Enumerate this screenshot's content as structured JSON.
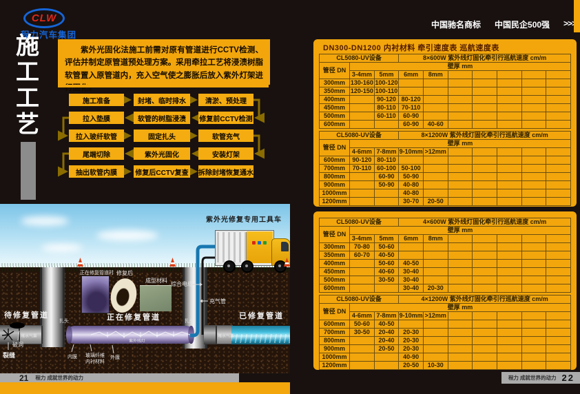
{
  "brand": {
    "logo": "CLW",
    "company": "程力汽车集团"
  },
  "top_right": {
    "badge1": "中国驰名商标",
    "badge2": "中国民企500强",
    "chevrons": ">>>"
  },
  "left_page": {
    "title_chars": [
      "施",
      "工",
      "工",
      "艺"
    ],
    "intro_text": "紫外光固化法施工前需对原有管道进行CCTV检测、评估并制定原管道预处理方案。采用牵拉工艺将浸渍树脂软管置入原管道内，充入空气使之膨胀后放入紫外灯架进行固化。",
    "flow": [
      {
        "dir": "right",
        "steps": [
          "施工准备",
          "封堵、临时排水",
          "清淤、预处理"
        ]
      },
      {
        "dir": "left",
        "steps": [
          "拉入垫膜",
          "软管的树脂浸渍",
          "修复前CCTV检测"
        ]
      },
      {
        "dir": "right",
        "steps": [
          "拉入玻纤软管",
          "固定扎头",
          "软管充气"
        ]
      },
      {
        "dir": "left",
        "steps": [
          "尾端切除",
          "紫外光固化",
          "安装灯架"
        ]
      },
      {
        "dir": "right",
        "steps": [
          "抽出软管内膜",
          "修复后CCTV复查",
          "拆除封堵恢复通水"
        ]
      }
    ],
    "footer": {
      "page_no": "21",
      "slogan": "程力 成就世界的动力"
    }
  },
  "illustration": {
    "truck_label": "紫外光修复专用工具车",
    "inset_photo_label": "正在修复管道时",
    "inset_ring_label": "修复后",
    "inset_material_label": "成型材料",
    "cable_label": "综合电缆",
    "air_pipe_label": "充气管",
    "pipe_waiting_label": "待修复管道",
    "pipe_repairing_label": "正在修复管道",
    "pipe_done_label": "已修复管道",
    "hole_label": "破洞",
    "crack_label": "裂缝",
    "plug_left_label": "堵水气囊",
    "plug_right_label": "堵水气囊",
    "clamp_left_label": "扎头",
    "clamp_right_label": "扎头",
    "inner_film_label": "内膜",
    "liner_label_line1": "玻璃纤维",
    "liner_label_line2": "内衬材料",
    "outer_film_label": "外膜",
    "uv_lamp_label": "紫外线灯"
  },
  "right_page": {
    "tables_title": "DN300-DN1200 内衬材料 牵引速度表 巡航速度表",
    "pipe_col_header": "管径 DN",
    "thickness_header": "壁厚 mm",
    "tables": [
      {
        "device": "CL5080-UV设备",
        "spec": "8×600W 紫外线灯固化牵引行巡航速度 cm/m",
        "thickness_cols": [
          "3-4mm",
          "5mm",
          "6mm",
          "8mm",
          "",
          "",
          "",
          "",
          ""
        ],
        "rows": [
          [
            "300mm",
            "130-160",
            "100-120",
            "",
            "",
            "",
            "",
            "",
            "",
            ""
          ],
          [
            "350mm",
            "120-150",
            "100-110",
            "",
            "",
            "",
            "",
            "",
            "",
            ""
          ],
          [
            "400mm",
            "",
            "90-120",
            "80-120",
            "",
            "",
            "",
            "",
            "",
            ""
          ],
          [
            "450mm",
            "",
            "80-110",
            "70-110",
            "",
            "",
            "",
            "",
            "",
            ""
          ],
          [
            "500mm",
            "",
            "60-110",
            "60-90",
            "",
            "",
            "",
            "",
            "",
            ""
          ],
          [
            "600mm",
            "",
            "",
            "60-90",
            "40-60",
            "",
            "",
            "",
            "",
            ""
          ]
        ]
      },
      {
        "device": "CL5080-UV设备",
        "spec": "8×1200W 紫外线灯固化牵引行巡航速度 cm/m",
        "thickness_cols": [
          "4-6mm",
          "7-8mm",
          "9-10mm",
          ">12mm",
          "",
          "",
          "",
          "",
          ""
        ],
        "rows": [
          [
            "600mm",
            "90-120",
            "80-110",
            "",
            "",
            "",
            "",
            "",
            "",
            ""
          ],
          [
            "700mm",
            "70-110",
            "60-100",
            "50-100",
            "",
            "",
            "",
            "",
            "",
            ""
          ],
          [
            "800mm",
            "",
            "60-90",
            "50-90",
            "",
            "",
            "",
            "",
            "",
            ""
          ],
          [
            "900mm",
            "",
            "50-90",
            "40-80",
            "",
            "",
            "",
            "",
            "",
            ""
          ],
          [
            "1000mm",
            "",
            "",
            "40-80",
            "",
            "",
            "",
            "",
            "",
            ""
          ],
          [
            "1200mm",
            "",
            "",
            "30-70",
            "20-50",
            "",
            "",
            "",
            "",
            ""
          ]
        ]
      },
      {
        "device": "CL5080-UV设备",
        "spec": "4×600W 紫外线灯固化牵引行巡航速度 cm/m",
        "thickness_cols": [
          "3-4mm",
          "5mm",
          "6mm",
          "8mm",
          "",
          "",
          "",
          "",
          ""
        ],
        "rows": [
          [
            "300mm",
            "70-80",
            "50-60",
            "",
            "",
            "",
            "",
            "",
            "",
            ""
          ],
          [
            "350mm",
            "60-70",
            "40-50",
            "",
            "",
            "",
            "",
            "",
            "",
            ""
          ],
          [
            "400mm",
            "",
            "50-60",
            "40-50",
            "",
            "",
            "",
            "",
            "",
            ""
          ],
          [
            "450mm",
            "",
            "40-60",
            "30-40",
            "",
            "",
            "",
            "",
            "",
            ""
          ],
          [
            "500mm",
            "",
            "30-50",
            "30-40",
            "",
            "",
            "",
            "",
            "",
            ""
          ],
          [
            "600mm",
            "",
            "",
            "30-40",
            "20-30",
            "",
            "",
            "",
            "",
            ""
          ]
        ]
      },
      {
        "device": "CL5080-UV设备",
        "spec": "4×1200W 紫外线灯固化牵引行巡航速度 cm/m",
        "thickness_cols": [
          "4-6mm",
          "7-8mm",
          "9-10mm",
          ">12mm",
          "",
          "",
          "",
          "",
          ""
        ],
        "rows": [
          [
            "600mm",
            "50-60",
            "40-50",
            "",
            "",
            "",
            "",
            "",
            "",
            ""
          ],
          [
            "700mm",
            "30-50",
            "20-40",
            "20-30",
            "",
            "",
            "",
            "",
            "",
            ""
          ],
          [
            "800mm",
            "",
            "20-40",
            "20-30",
            "",
            "",
            "",
            "",
            "",
            ""
          ],
          [
            "900mm",
            "",
            "20-50",
            "20-30",
            "",
            "",
            "",
            "",
            "",
            ""
          ],
          [
            "1000mm",
            "",
            "",
            "40-90",
            "",
            "",
            "",
            "",
            "",
            ""
          ],
          [
            "1200mm",
            "",
            "",
            "20-50",
            "10-30",
            "",
            "",
            "",
            "",
            ""
          ]
        ]
      }
    ],
    "footer": {
      "slogan": "程力 成就世界的动力",
      "page_no": "22"
    }
  },
  "colors": {
    "accent_orange": "#F2A60C",
    "brand_blue": "#1565D8",
    "brand_red": "#E02818"
  }
}
